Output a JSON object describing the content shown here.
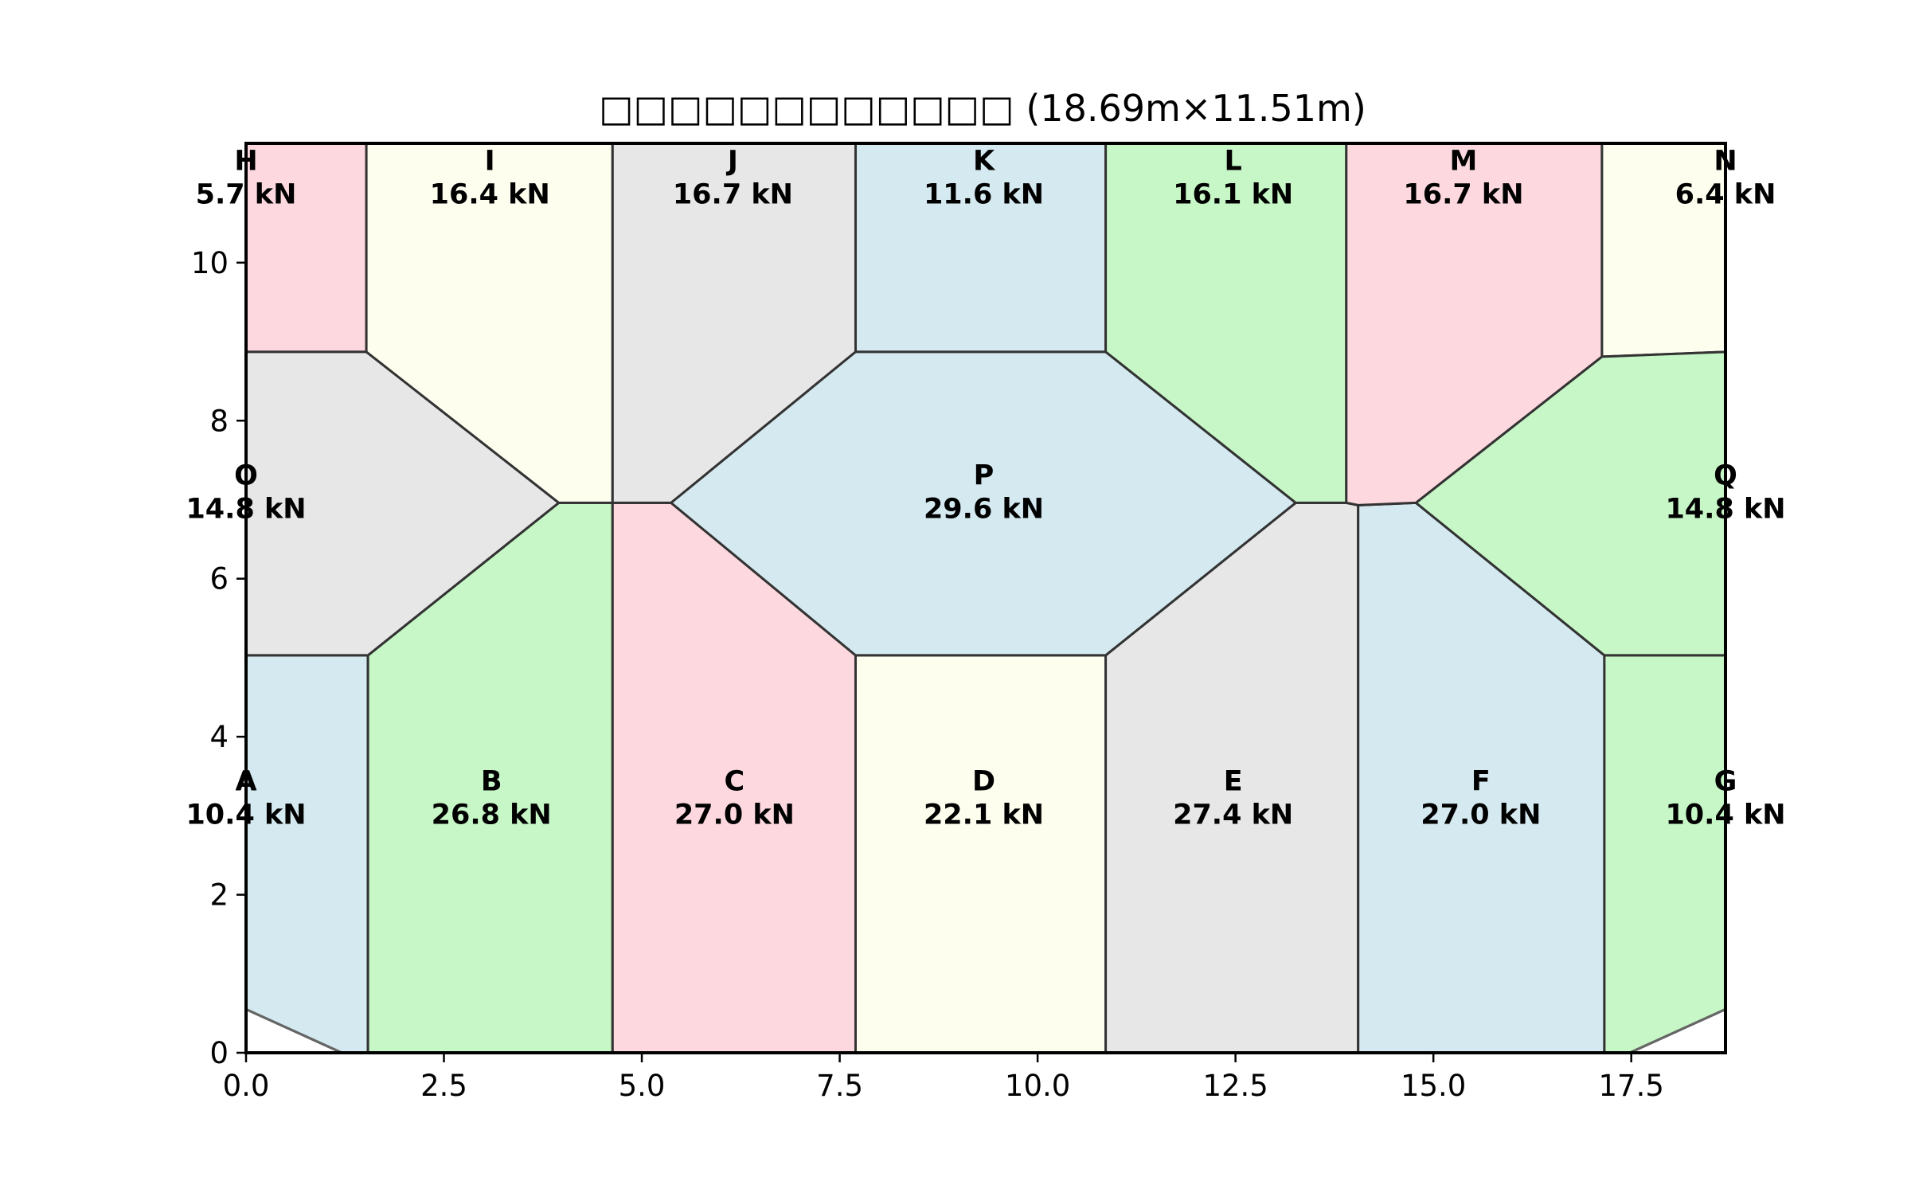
{
  "chart_data": {
    "type": "tributary-area-diagram",
    "title": "□□□□□□□□□□□□ (18.69m×11.51m)",
    "xlim": [
      0,
      18.69
    ],
    "ylim": [
      0,
      11.51
    ],
    "xticks": [
      0,
      2.5,
      5,
      7.5,
      10,
      12.5,
      15,
      17.5
    ],
    "xtick_labels": [
      "0.0",
      "2.5",
      "5.0",
      "7.5",
      "10.0",
      "12.5",
      "15.0",
      "17.5"
    ],
    "yticks": [
      0,
      2,
      4,
      6,
      8,
      10
    ],
    "ytick_labels": [
      "0",
      "2",
      "4",
      "6",
      "8",
      "10"
    ],
    "colors": {
      "blue": "#d4eaf0",
      "green": "#c7f7c7",
      "pink": "#fdd9df",
      "yellow": "#fefeef",
      "gray": "#e7e7e7"
    },
    "regions": [
      {
        "name": "A",
        "load": "10.4 kN",
        "label_at": [
          0,
          3.3
        ],
        "color": "blue",
        "polygon": [
          [
            0,
            5.03
          ],
          [
            1.54,
            5.03
          ],
          [
            1.54,
            0
          ],
          [
            1.21,
            0
          ],
          [
            0,
            0.55
          ]
        ]
      },
      {
        "name": "B",
        "load": "26.8 kN",
        "label_at": [
          3.1,
          3.3
        ],
        "color": "green",
        "polygon": [
          [
            1.54,
            0
          ],
          [
            4.63,
            0
          ],
          [
            4.63,
            6.96
          ],
          [
            3.95,
            6.96
          ],
          [
            1.54,
            5.03
          ]
        ]
      },
      {
        "name": "C",
        "load": "27.0 kN",
        "label_at": [
          6.17,
          3.3
        ],
        "color": "pink",
        "polygon": [
          [
            4.63,
            0
          ],
          [
            7.7,
            0
          ],
          [
            7.7,
            5.03
          ],
          [
            5.37,
            6.96
          ],
          [
            4.63,
            6.96
          ]
        ]
      },
      {
        "name": "D",
        "load": "22.1 kN",
        "label_at": [
          9.32,
          3.3
        ],
        "color": "yellow",
        "polygon": [
          [
            7.7,
            0
          ],
          [
            10.86,
            0
          ],
          [
            10.86,
            5.03
          ],
          [
            7.7,
            5.03
          ]
        ]
      },
      {
        "name": "E",
        "load": "27.4 kN",
        "label_at": [
          12.47,
          3.3
        ],
        "color": "gray",
        "polygon": [
          [
            10.86,
            0
          ],
          [
            14.05,
            0
          ],
          [
            14.05,
            6.93
          ],
          [
            13.9,
            6.96
          ],
          [
            13.26,
            6.96
          ],
          [
            10.86,
            5.03
          ]
        ]
      },
      {
        "name": "F",
        "load": "27.0 kN",
        "label_at": [
          15.6,
          3.3
        ],
        "color": "blue",
        "polygon": [
          [
            14.05,
            0
          ],
          [
            17.16,
            0
          ],
          [
            17.16,
            5.03
          ],
          [
            14.78,
            6.96
          ],
          [
            14.05,
            6.93
          ]
        ]
      },
      {
        "name": "G",
        "load": "10.4 kN",
        "label_at": [
          18.69,
          3.3
        ],
        "color": "green",
        "polygon": [
          [
            17.16,
            0
          ],
          [
            17.48,
            0
          ],
          [
            18.69,
            0.55
          ],
          [
            18.69,
            5.03
          ],
          [
            17.16,
            5.03
          ]
        ]
      },
      {
        "name": "H",
        "load": "5.7 kN",
        "label_at": [
          0,
          11.15
        ],
        "color": "pink",
        "polygon": [
          [
            0,
            8.87
          ],
          [
            1.52,
            8.87
          ],
          [
            1.52,
            11.51
          ],
          [
            0,
            11.51
          ]
        ]
      },
      {
        "name": "I",
        "load": "16.4 kN",
        "label_at": [
          3.08,
          11.15
        ],
        "color": "yellow",
        "polygon": [
          [
            1.52,
            8.87
          ],
          [
            1.52,
            11.51
          ],
          [
            4.63,
            11.51
          ],
          [
            4.63,
            6.96
          ],
          [
            3.95,
            6.96
          ]
        ]
      },
      {
        "name": "J",
        "load": "16.7 kN",
        "label_at": [
          6.15,
          11.15
        ],
        "color": "gray",
        "polygon": [
          [
            4.63,
            6.96
          ],
          [
            5.37,
            6.96
          ],
          [
            7.7,
            8.87
          ],
          [
            7.7,
            11.51
          ],
          [
            4.63,
            11.51
          ]
        ]
      },
      {
        "name": "K",
        "load": "11.6 kN",
        "label_at": [
          9.32,
          11.15
        ],
        "color": "blue",
        "polygon": [
          [
            7.7,
            8.87
          ],
          [
            10.86,
            8.87
          ],
          [
            10.86,
            11.51
          ],
          [
            7.7,
            11.51
          ]
        ]
      },
      {
        "name": "L",
        "load": "16.1 kN",
        "label_at": [
          12.47,
          11.15
        ],
        "color": "green",
        "polygon": [
          [
            10.86,
            8.87
          ],
          [
            13.26,
            6.96
          ],
          [
            13.9,
            6.96
          ],
          [
            13.9,
            11.51
          ],
          [
            10.86,
            11.51
          ]
        ]
      },
      {
        "name": "M",
        "load": "16.7 kN",
        "label_at": [
          15.38,
          11.15
        ],
        "color": "pink",
        "polygon": [
          [
            13.9,
            6.96
          ],
          [
            14.05,
            6.93
          ],
          [
            14.78,
            6.96
          ],
          [
            17.13,
            8.81
          ],
          [
            17.13,
            11.51
          ],
          [
            13.9,
            11.51
          ]
        ]
      },
      {
        "name": "N",
        "load": "6.4 kN",
        "label_at": [
          18.69,
          11.15
        ],
        "color": "yellow",
        "polygon": [
          [
            17.13,
            8.81
          ],
          [
            18.69,
            8.87
          ],
          [
            18.69,
            11.51
          ],
          [
            17.13,
            11.51
          ]
        ]
      },
      {
        "name": "O",
        "load": "14.8 kN",
        "label_at": [
          0,
          7.17
        ],
        "color": "gray",
        "polygon": [
          [
            0,
            5.03
          ],
          [
            1.54,
            5.03
          ],
          [
            3.95,
            6.96
          ],
          [
            1.52,
            8.87
          ],
          [
            0,
            8.87
          ]
        ]
      },
      {
        "name": "P",
        "load": "29.6 kN",
        "label_at": [
          9.32,
          7.17
        ],
        "color": "blue",
        "polygon": [
          [
            5.37,
            6.96
          ],
          [
            7.7,
            5.03
          ],
          [
            10.86,
            5.03
          ],
          [
            13.26,
            6.96
          ],
          [
            10.86,
            8.87
          ],
          [
            7.7,
            8.87
          ]
        ]
      },
      {
        "name": "Q",
        "load": "14.8 kN",
        "label_at": [
          18.69,
          7.17
        ],
        "color": "green",
        "polygon": [
          [
            14.78,
            6.96
          ],
          [
            17.16,
            5.03
          ],
          [
            18.69,
            5.03
          ],
          [
            18.69,
            8.87
          ],
          [
            17.13,
            8.81
          ]
        ]
      }
    ]
  }
}
